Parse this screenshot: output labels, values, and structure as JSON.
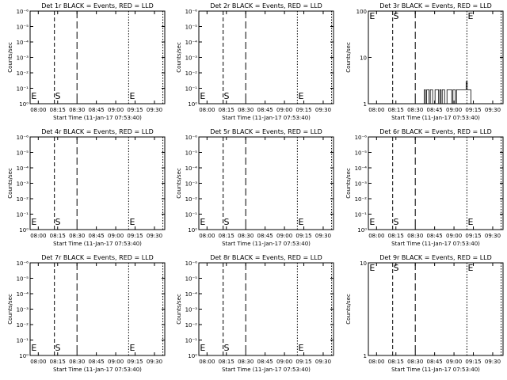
{
  "chart_data": [
    {
      "type": "line",
      "title": "Det 1r BLACK = Events, RED = LLD",
      "ylabel": "Counts/sec",
      "xlabel": "Start Time (11-Jan-17 07:53:40)",
      "yscale": "log",
      "yticks": [
        "10⁰",
        "10⁻¹",
        "10⁻²",
        "10⁻³",
        "10⁻⁴",
        "10⁻⁵",
        "10⁻⁶"
      ],
      "xticks": [
        "08:00",
        "08:15",
        "08:30",
        "08:45",
        "09:00",
        "09:15",
        "09:30"
      ],
      "markers": [
        "E",
        "S",
        "E"
      ],
      "series": []
    },
    {
      "type": "line",
      "title": "Det 2r BLACK = Events, RED = LLD",
      "ylabel": "Counts/sec",
      "xlabel": "Start Time (11-Jan-17 07:53:40)",
      "yscale": "log",
      "yticks": [
        "10⁰",
        "10⁻¹",
        "10⁻²",
        "10⁻³",
        "10⁻⁴",
        "10⁻⁵",
        "10⁻⁶"
      ],
      "xticks": [
        "08:00",
        "08:15",
        "08:30",
        "08:45",
        "09:00",
        "09:15",
        "09:30"
      ],
      "markers": [
        "E",
        "S",
        "E"
      ],
      "series": []
    },
    {
      "type": "line",
      "title": "Det 3r BLACK = Events, RED = LLD",
      "ylabel": "Counts/sec",
      "xlabel": "Start Time (11-Jan-17 07:53:40)",
      "yscale": "log",
      "yticks": [
        "1",
        "10",
        "100"
      ],
      "xticks": [
        "08:00",
        "08:15",
        "08:30",
        "08:45",
        "09:00",
        "09:15",
        "09:30"
      ],
      "markers": [
        "E",
        "S",
        "E"
      ],
      "series": [
        {
          "x_start": "08:37",
          "x_end": "09:14",
          "values": [
            2,
            1,
            2,
            2,
            1,
            2,
            2,
            1,
            1,
            2,
            2,
            2,
            1,
            2,
            1,
            2,
            2,
            1,
            1,
            2,
            2,
            2,
            2,
            1,
            2,
            2,
            1,
            2,
            2,
            2,
            2,
            2,
            2,
            2,
            2,
            3,
            2,
            2,
            2,
            1
          ]
        }
      ]
    },
    {
      "type": "line",
      "title": "Det 4r BLACK = Events, RED = LLD",
      "ylabel": "Counts/sec",
      "xlabel": "Start Time (11-Jan-17 07:53:40)",
      "yscale": "log",
      "yticks": [
        "10⁰",
        "10⁻¹",
        "10⁻²",
        "10⁻³",
        "10⁻⁴",
        "10⁻⁵",
        "10⁻⁶"
      ],
      "xticks": [
        "08:00",
        "08:15",
        "08:30",
        "08:45",
        "09:00",
        "09:15",
        "09:30"
      ],
      "markers": [
        "E",
        "S",
        "E"
      ],
      "series": []
    },
    {
      "type": "line",
      "title": "Det 5r BLACK = Events, RED = LLD",
      "ylabel": "Counts/sec",
      "xlabel": "Start Time (11-Jan-17 07:53:40)",
      "yscale": "log",
      "yticks": [
        "10⁰",
        "10⁻¹",
        "10⁻²",
        "10⁻³",
        "10⁻⁴",
        "10⁻⁵",
        "10⁻⁶"
      ],
      "xticks": [
        "08:00",
        "08:15",
        "08:30",
        "08:45",
        "09:00",
        "09:15",
        "09:30"
      ],
      "markers": [
        "E",
        "S",
        "E"
      ],
      "series": []
    },
    {
      "type": "line",
      "title": "Det 6r BLACK = Events, RED = LLD",
      "ylabel": "Counts/sec",
      "xlabel": "Start Time (11-Jan-17 07:53:40)",
      "yscale": "log",
      "yticks": [
        "10⁰",
        "10⁻¹",
        "10⁻²",
        "10⁻³",
        "10⁻⁴",
        "10⁻⁵",
        "10⁻⁶"
      ],
      "xticks": [
        "08:00",
        "08:15",
        "08:30",
        "08:45",
        "09:00",
        "09:15",
        "09:30"
      ],
      "markers": [
        "E",
        "S",
        "E"
      ],
      "series": []
    },
    {
      "type": "line",
      "title": "Det 7r BLACK = Events, RED = LLD",
      "ylabel": "Counts/sec",
      "xlabel": "Start Time (11-Jan-17 07:53:40)",
      "yscale": "log",
      "yticks": [
        "10⁰",
        "10⁻¹",
        "10⁻²",
        "10⁻³",
        "10⁻⁴",
        "10⁻⁵",
        "10⁻⁶"
      ],
      "xticks": [
        "08:00",
        "08:15",
        "08:30",
        "08:45",
        "09:00",
        "09:15",
        "09:30"
      ],
      "markers": [
        "E",
        "S",
        "E"
      ],
      "series": []
    },
    {
      "type": "line",
      "title": "Det 8r BLACK = Events, RED = LLD",
      "ylabel": "Counts/sec",
      "xlabel": "Start Time (11-Jan-17 07:53:40)",
      "yscale": "log",
      "yticks": [
        "10⁰",
        "10⁻¹",
        "10⁻²",
        "10⁻³",
        "10⁻⁴",
        "10⁻⁵",
        "10⁻⁶"
      ],
      "xticks": [
        "08:00",
        "08:15",
        "08:30",
        "08:45",
        "09:00",
        "09:15",
        "09:30"
      ],
      "markers": [
        "E",
        "S",
        "E"
      ],
      "series": []
    },
    {
      "type": "line",
      "title": "Det 9r BLACK = Events, RED = LLD",
      "ylabel": "Counts/sec",
      "xlabel": "Start Time (11-Jan-17 07:53:40)",
      "yscale": "log",
      "yticks": [
        "1",
        "10"
      ],
      "xticks": [
        "08:00",
        "08:15",
        "08:30",
        "08:45",
        "09:00",
        "09:15",
        "09:30"
      ],
      "markers": [
        "E",
        "S",
        "E"
      ],
      "series": []
    }
  ]
}
